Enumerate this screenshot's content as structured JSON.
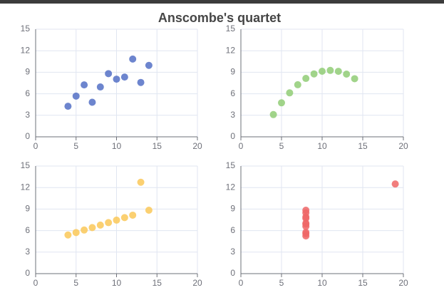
{
  "title": "Anscombe's quartet",
  "chart_data": [
    {
      "type": "scatter",
      "color": "#5470c6",
      "grid": true,
      "x": [
        10,
        8,
        13,
        9,
        11,
        14,
        6,
        4,
        12,
        7,
        5
      ],
      "values": [
        8.04,
        6.95,
        7.58,
        8.81,
        8.33,
        9.96,
        7.24,
        4.26,
        10.84,
        4.82,
        5.68
      ],
      "xlim": [
        0,
        20
      ],
      "xticks": [
        0,
        5,
        10,
        15,
        20
      ],
      "ylim": [
        0,
        15
      ],
      "yticks": [
        0,
        3,
        6,
        9,
        12,
        15
      ]
    },
    {
      "type": "scatter",
      "color": "#91cc75",
      "grid": true,
      "x": [
        10,
        8,
        13,
        9,
        11,
        14,
        6,
        4,
        12,
        7,
        5
      ],
      "values": [
        9.14,
        8.14,
        8.74,
        8.77,
        9.26,
        8.1,
        6.13,
        3.1,
        9.13,
        7.26,
        4.74
      ],
      "xlim": [
        0,
        20
      ],
      "xticks": [
        0,
        5,
        10,
        15,
        20
      ],
      "ylim": [
        0,
        15
      ],
      "yticks": [
        0,
        3,
        6,
        9,
        12,
        15
      ]
    },
    {
      "type": "scatter",
      "color": "#fac858",
      "grid": true,
      "x": [
        10,
        8,
        13,
        9,
        11,
        14,
        6,
        4,
        12,
        7,
        5
      ],
      "values": [
        7.46,
        6.77,
        12.74,
        7.11,
        7.81,
        8.84,
        6.08,
        5.39,
        8.15,
        6.42,
        5.73
      ],
      "xlim": [
        0,
        20
      ],
      "xticks": [
        0,
        5,
        10,
        15,
        20
      ],
      "ylim": [
        0,
        15
      ],
      "yticks": [
        0,
        3,
        6,
        9,
        12,
        15
      ]
    },
    {
      "type": "scatter",
      "color": "#ee6666",
      "grid": true,
      "x": [
        8,
        8,
        8,
        8,
        8,
        8,
        8,
        19,
        8,
        8,
        8
      ],
      "values": [
        6.58,
        5.76,
        7.71,
        8.84,
        8.47,
        7.04,
        5.25,
        12.5,
        5.56,
        7.91,
        6.89
      ],
      "xlim": [
        0,
        20
      ],
      "xticks": [
        0,
        5,
        10,
        15,
        20
      ],
      "ylim": [
        0,
        15
      ],
      "yticks": [
        0,
        3,
        6,
        9,
        12,
        15
      ]
    }
  ]
}
